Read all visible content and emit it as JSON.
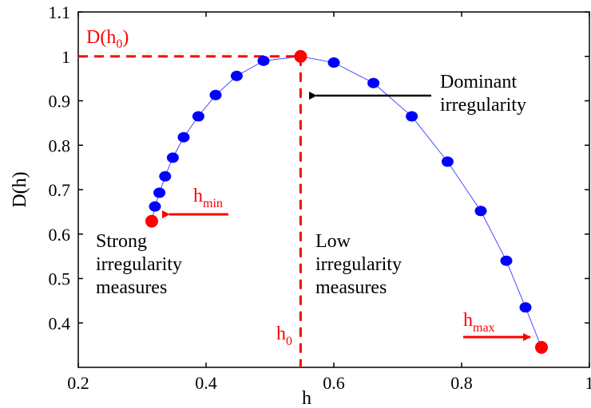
{
  "chart_data": {
    "type": "scatter",
    "xlabel": "h",
    "ylabel": "D(h)",
    "xlim": [
      0.2,
      1.0
    ],
    "ylim": [
      0.3,
      1.1
    ],
    "grid": false,
    "x_ticks": [
      "0.2",
      "0.4",
      "0.6",
      "0.8",
      "1"
    ],
    "y_ticks": [
      "0.4",
      "0.5",
      "0.6",
      "0.7",
      "0.8",
      "0.9",
      "1",
      "1.1"
    ],
    "colors": {
      "points": "#0000ff",
      "line": "#4a4aff",
      "highlight": "#ff0000",
      "arrow": "#000000"
    },
    "series": [
      {
        "x": [
          0.315,
          0.32,
          0.327,
          0.336,
          0.348,
          0.365,
          0.388,
          0.415,
          0.448,
          0.49,
          0.548,
          0.6,
          0.662,
          0.722,
          0.778,
          0.83,
          0.87,
          0.9,
          0.925
        ],
        "y": [
          0.629,
          0.662,
          0.693,
          0.73,
          0.772,
          0.818,
          0.865,
          0.913,
          0.956,
          0.99,
          1.0,
          0.986,
          0.94,
          0.865,
          0.763,
          0.652,
          0.54,
          0.435,
          0.345
        ]
      }
    ],
    "highlight_points": [
      {
        "x": 0.315,
        "y": 0.629
      },
      {
        "x": 0.548,
        "y": 1.0
      },
      {
        "x": 0.925,
        "y": 0.345
      }
    ],
    "annotations": {
      "d_h0": {
        "main": "D(h",
        "sub": "0",
        "close": ")"
      },
      "h0": {
        "main": "h",
        "sub": "0"
      },
      "hmin": {
        "main": "h",
        "sub": "min"
      },
      "hmax": {
        "main": "h",
        "sub": "max"
      },
      "dominant": [
        "Dominant",
        "irregularity"
      ],
      "strong": [
        "Strong",
        "irregularity",
        "measures"
      ],
      "low": [
        "Low",
        "irregularity",
        "measures"
      ]
    }
  }
}
